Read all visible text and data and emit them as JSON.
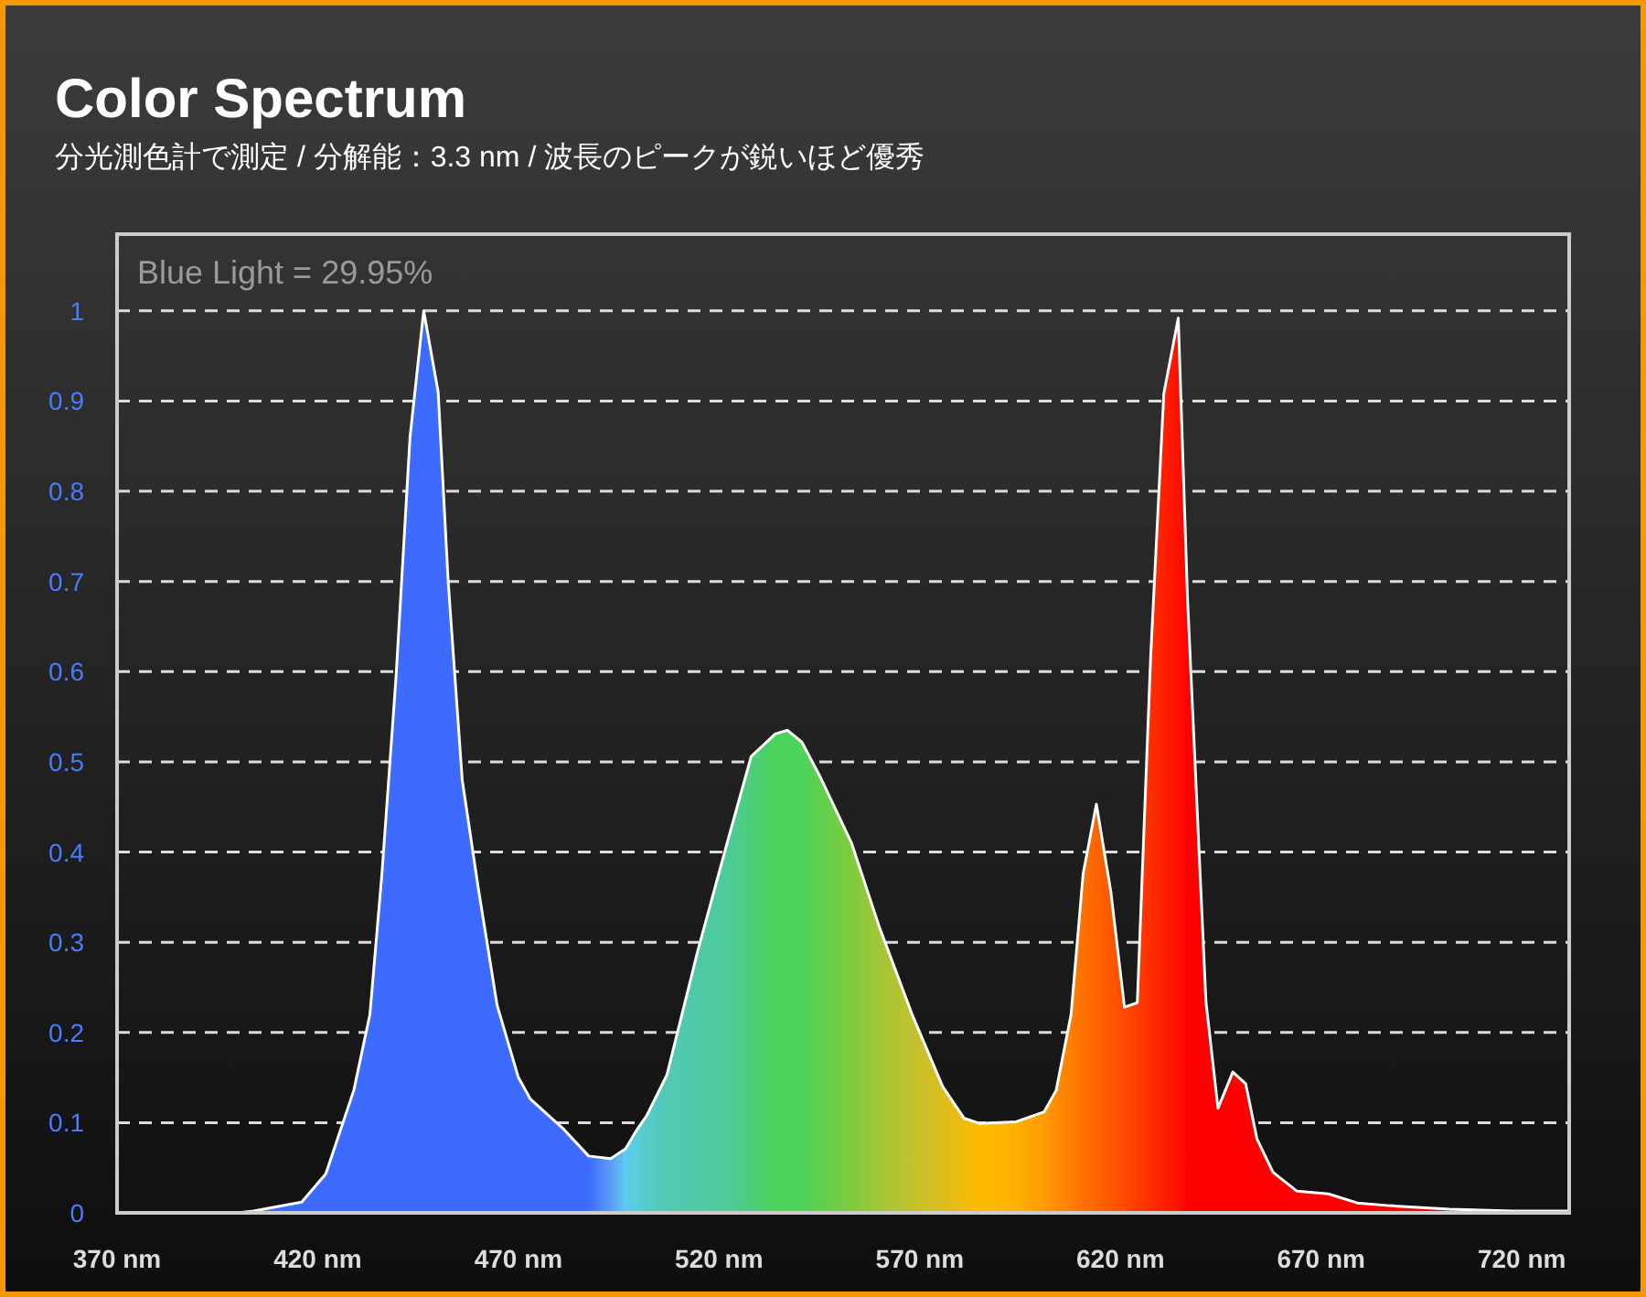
{
  "chart_data": {
    "type": "area",
    "title": "Color Spectrum",
    "subtitle": "分光測色計で測定 / 分解能：3.3 nm / 波長のピークが鋭いほど優秀",
    "annotations": [
      "Blue Light = 29.95%"
    ],
    "xlim": [
      370,
      731.8
    ],
    "xticks": [
      {
        "value": 370,
        "label": "370 nm"
      },
      {
        "value": 420,
        "label": "420 nm"
      },
      {
        "value": 470,
        "label": "470 nm"
      },
      {
        "value": 520,
        "label": "520 nm"
      },
      {
        "value": 570,
        "label": "570 nm"
      },
      {
        "value": 620,
        "label": "620 nm"
      },
      {
        "value": 670,
        "label": "670 nm"
      },
      {
        "value": 720,
        "label": "720 nm"
      }
    ],
    "ylim": [
      0,
      1.085
    ],
    "yticks": [
      0,
      0.1,
      0.2,
      0.3,
      0.4,
      0.5,
      0.6,
      0.7,
      0.8,
      0.9,
      1
    ],
    "grid": "y",
    "x": [
      370,
      400,
      404,
      416,
      422,
      429,
      433,
      436,
      439.5,
      443,
      446.4,
      450,
      452.5,
      456,
      460,
      464.7,
      470,
      473,
      481,
      487.5,
      493,
      496.7,
      499.5,
      502,
      507,
      514.6,
      522,
      528,
      534,
      537,
      540.6,
      545,
      553,
      560,
      568,
      575.7,
      581,
      585,
      594,
      601,
      604,
      607.7,
      610.7,
      614,
      617.6,
      621,
      624.2,
      627.5,
      630.8,
      634.4,
      636.7,
      641.3,
      644.3,
      648,
      651.2,
      654,
      658,
      664,
      671.8,
      679,
      687,
      702,
      717.7,
      731.8
    ],
    "values": [
      0,
      0,
      0.002,
      0.012,
      0.043,
      0.136,
      0.22,
      0.376,
      0.593,
      0.86,
      1.0,
      0.91,
      0.7,
      0.48,
      0.36,
      0.23,
      0.15,
      0.126,
      0.094,
      0.063,
      0.06,
      0.071,
      0.092,
      0.108,
      0.153,
      0.289,
      0.41,
      0.506,
      0.531,
      0.535,
      0.522,
      0.485,
      0.41,
      0.316,
      0.221,
      0.14,
      0.105,
      0.099,
      0.101,
      0.112,
      0.136,
      0.22,
      0.376,
      0.453,
      0.356,
      0.228,
      0.233,
      0.614,
      0.908,
      0.992,
      0.681,
      0.234,
      0.116,
      0.156,
      0.143,
      0.082,
      0.045,
      0.024,
      0.021,
      0.011,
      0.008,
      0.004,
      0.002,
      0.002
    ],
    "colors": [
      "#3d6bff",
      "#3d6bff",
      "#3d6bff",
      "#3d6bff",
      "#3d6bff",
      "#3d6bff",
      "#3d6bff",
      "#3d6bff",
      "#3d6bff",
      "#3d6bff",
      "#3d6bff",
      "#3d6bff",
      "#3d6bff",
      "#3d6bff",
      "#3d6bff",
      "#3d6bff",
      "#3d6bff",
      "#3d6bff",
      "#3d6bff",
      "#3d6bff",
      "#5a9cf5",
      "#5ccbf0",
      "#58cdd8",
      "#55cbc8",
      "#52c9b5",
      "#50c9a8",
      "#4ecb9a",
      "#4ccd7a",
      "#4cd35a",
      "#4cd35a",
      "#4cd35a",
      "#5ed04e",
      "#7fcb3e",
      "#a2c636",
      "#c0c22e",
      "#dcbd1e",
      "#efbc0c",
      "#fdbc00",
      "#ffb000",
      "#ff9a00",
      "#ff8c00",
      "#ff7e00",
      "#ff7000",
      "#ff6400",
      "#ff5800",
      "#ff4a00",
      "#ff3c00",
      "#ff2e00",
      "#ff2000",
      "#ff1000",
      "#ff0000",
      "#ff0000",
      "#ff0000",
      "#ff0000",
      "#ff0000",
      "#ff0000",
      "#ff0000",
      "#ff0000",
      "#ff0000",
      "#ff0000",
      "#ff0000",
      "#ff0000",
      "#ff0000",
      "#ff0000"
    ]
  }
}
